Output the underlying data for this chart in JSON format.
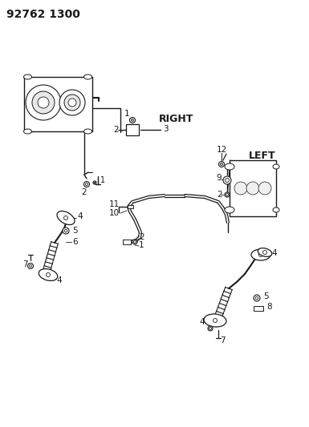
{
  "title": "92762 1300",
  "right_label": "RIGHT",
  "left_label": "LEFT",
  "bg_color": "#ffffff",
  "line_color": "#1a1a1a",
  "text_color": "#1a1a1a",
  "title_fontsize": 10,
  "label_fontsize": 9,
  "number_fontsize": 7.5,
  "figsize": [
    3.85,
    5.33
  ],
  "dpi": 100
}
